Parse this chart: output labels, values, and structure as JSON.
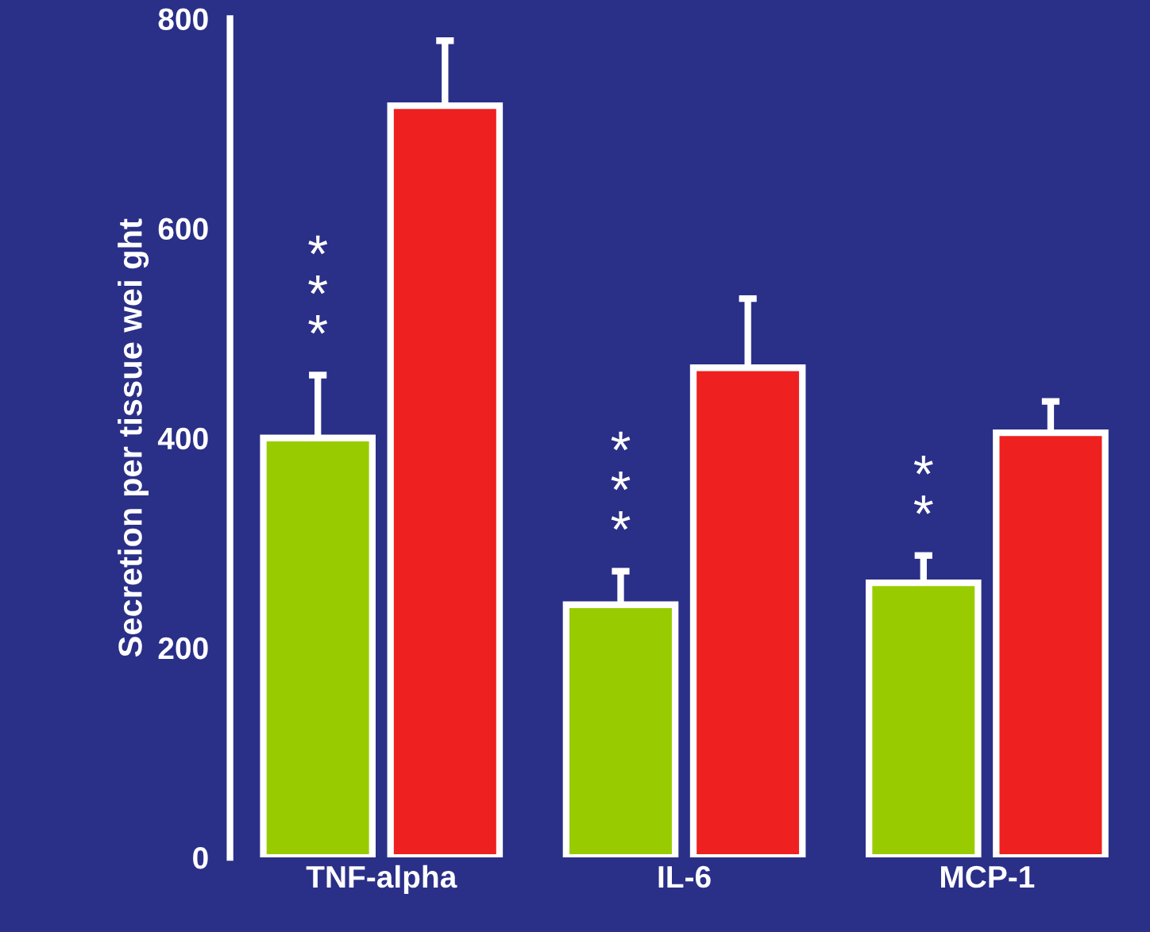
{
  "chart_data": {
    "type": "bar",
    "ylabel": "Secretion per tissue wei ght",
    "categories": [
      "TNF-alpha",
      "IL-6",
      "MCP-1"
    ],
    "series": [
      {
        "color": "#99cc00",
        "values": [
          400,
          241,
          262
        ],
        "errors": [
          60,
          32,
          26
        ]
      },
      {
        "color": "#ee2020",
        "values": [
          717,
          467,
          405
        ],
        "errors": [
          62,
          66,
          30
        ]
      }
    ],
    "ylim": [
      0,
      800
    ],
    "yticks": [
      0,
      200,
      400,
      600,
      800
    ],
    "grid": false,
    "legend": false,
    "annotations": [
      "***",
      "***",
      "**"
    ]
  }
}
